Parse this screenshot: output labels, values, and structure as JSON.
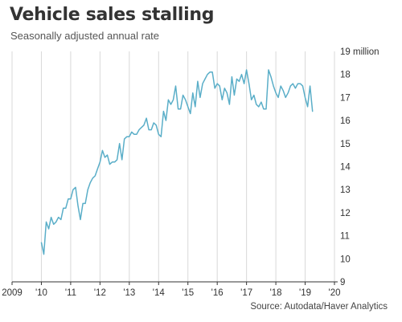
{
  "chart_data": {
    "type": "line",
    "title": "Vehicle sales stalling",
    "subtitle": "Seasonally adjusted annual rate",
    "source": "Source: Autodata/Haver Analytics",
    "xlabel": "",
    "ylabel": "",
    "xlim": [
      2009,
      2020
    ],
    "ylim": [
      9,
      19
    ],
    "grid": "vertical",
    "y_ticks": [
      {
        "value": 19,
        "label": "19 million"
      },
      {
        "value": 18,
        "label": "18"
      },
      {
        "value": 17,
        "label": "17"
      },
      {
        "value": 16,
        "label": "16"
      },
      {
        "value": 15,
        "label": "15"
      },
      {
        "value": 14,
        "label": "14"
      },
      {
        "value": 13,
        "label": "13"
      },
      {
        "value": 12,
        "label": "12"
      },
      {
        "value": 11,
        "label": "11"
      },
      {
        "value": 10,
        "label": "10"
      },
      {
        "value": 9,
        "label": "9"
      }
    ],
    "x_ticks": [
      {
        "value": 2009,
        "label": "2009"
      },
      {
        "value": 2010,
        "label": "'10"
      },
      {
        "value": 2011,
        "label": "'11"
      },
      {
        "value": 2012,
        "label": "'12"
      },
      {
        "value": 2013,
        "label": "'13"
      },
      {
        "value": 2014,
        "label": "'14"
      },
      {
        "value": 2015,
        "label": "'15"
      },
      {
        "value": 2016,
        "label": "'16"
      },
      {
        "value": 2017,
        "label": "'17"
      },
      {
        "value": 2018,
        "label": "'18"
      },
      {
        "value": 2019,
        "label": "'19"
      },
      {
        "value": 2020,
        "label": "'20"
      }
    ],
    "series": [
      {
        "color": "#5aaec8",
        "x": [
          2010.0,
          2010.083,
          2010.167,
          2010.25,
          2010.333,
          2010.417,
          2010.5,
          2010.583,
          2010.667,
          2010.75,
          2010.833,
          2010.917,
          2011.0,
          2011.083,
          2011.167,
          2011.25,
          2011.333,
          2011.417,
          2011.5,
          2011.583,
          2011.667,
          2011.75,
          2011.833,
          2011.917,
          2012.0,
          2012.083,
          2012.167,
          2012.25,
          2012.333,
          2012.417,
          2012.5,
          2012.583,
          2012.667,
          2012.75,
          2012.833,
          2012.917,
          2013.0,
          2013.083,
          2013.167,
          2013.25,
          2013.333,
          2013.417,
          2013.5,
          2013.583,
          2013.667,
          2013.75,
          2013.833,
          2013.917,
          2014.0,
          2014.083,
          2014.167,
          2014.25,
          2014.333,
          2014.417,
          2014.5,
          2014.583,
          2014.667,
          2014.75,
          2014.833,
          2014.917,
          2015.0,
          2015.083,
          2015.167,
          2015.25,
          2015.333,
          2015.417,
          2015.5,
          2015.583,
          2015.667,
          2015.75,
          2015.833,
          2015.917,
          2016.0,
          2016.083,
          2016.167,
          2016.25,
          2016.333,
          2016.417,
          2016.5,
          2016.583,
          2016.667,
          2016.75,
          2016.833,
          2016.917,
          2017.0,
          2017.083,
          2017.167,
          2017.25,
          2017.333,
          2017.417,
          2017.5,
          2017.583,
          2017.667,
          2017.75,
          2017.833,
          2017.917,
          2018.0,
          2018.083,
          2018.167,
          2018.25,
          2018.333,
          2018.417,
          2018.5,
          2018.583,
          2018.667,
          2018.75,
          2018.833,
          2018.917,
          2019.0,
          2019.083,
          2019.167,
          2019.25
        ],
        "y": [
          10.7,
          10.2,
          11.6,
          11.3,
          11.8,
          11.5,
          11.6,
          11.8,
          11.7,
          12.2,
          12.2,
          12.6,
          12.6,
          13.0,
          13.1,
          12.3,
          11.7,
          12.4,
          12.4,
          13.0,
          13.3,
          13.5,
          13.6,
          13.9,
          14.2,
          14.7,
          14.4,
          14.5,
          14.1,
          14.2,
          14.2,
          14.3,
          15.0,
          14.3,
          15.2,
          15.3,
          15.3,
          15.5,
          15.4,
          15.4,
          15.6,
          15.7,
          15.8,
          16.1,
          15.6,
          15.6,
          15.9,
          15.8,
          15.4,
          15.3,
          16.4,
          16.0,
          16.9,
          16.7,
          16.9,
          17.5,
          16.5,
          16.5,
          17.1,
          16.9,
          16.6,
          16.3,
          17.2,
          16.6,
          17.7,
          17.0,
          17.6,
          17.8,
          18.0,
          18.1,
          18.1,
          17.4,
          17.6,
          17.5,
          16.9,
          17.4,
          17.2,
          16.7,
          17.9,
          17.1,
          17.8,
          17.7,
          18.0,
          17.6,
          18.2,
          17.6,
          16.9,
          17.1,
          16.7,
          16.6,
          16.8,
          16.5,
          16.5,
          18.2,
          17.9,
          17.5,
          17.2,
          17.0,
          17.5,
          17.3,
          17.0,
          17.2,
          17.5,
          17.6,
          17.4,
          17.6,
          17.6,
          17.5,
          17.0,
          16.6,
          17.5,
          16.4
        ]
      }
    ]
  }
}
